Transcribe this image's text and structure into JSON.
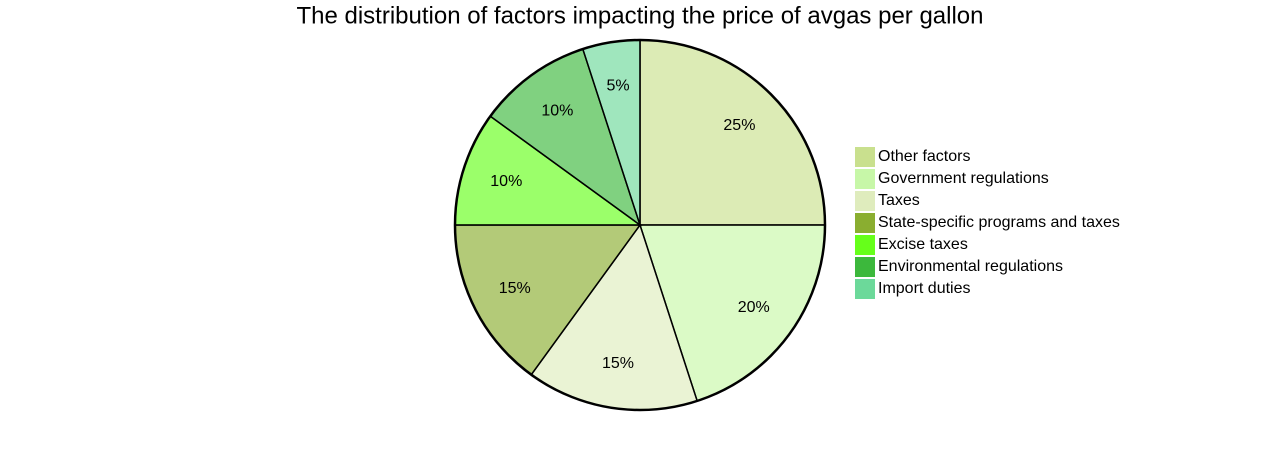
{
  "chart_data": {
    "type": "pie",
    "title": "The distribution of factors impacting the price of avgas per gallon",
    "categories": [
      "Other factors",
      "Government regulations",
      "Taxes",
      "State-specific programs and taxes",
      "Excise taxes",
      "Environmental regulations",
      "Import duties"
    ],
    "values": [
      25,
      20,
      15,
      15,
      10,
      10,
      5
    ],
    "value_labels": [
      "25%",
      "20%",
      "15%",
      "15%",
      "10%",
      "10%",
      "5%"
    ],
    "colors": [
      "#c9e08e",
      "#c7f7a8",
      "#dfecbd",
      "#8aae30",
      "#66ff1a",
      "#3cb83c",
      "#6cd99a"
    ],
    "legend": "right"
  }
}
